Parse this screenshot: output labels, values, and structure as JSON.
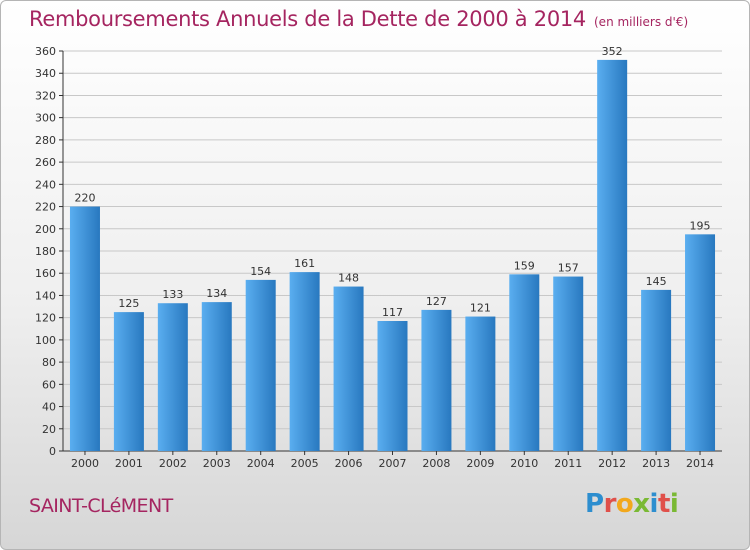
{
  "header": {
    "title": "Remboursements Annuels de la Dette de 2000 à 2014",
    "unit": "(en milliers d'€)"
  },
  "footer": {
    "town": "SAINT-CLéMENT",
    "logo_letters": [
      "P",
      "r",
      "o",
      "x",
      "i",
      "t",
      "i"
    ],
    "logo_colors": [
      "#2d8ecf",
      "#e0504a",
      "#f2a81d",
      "#7ab934",
      "#2d8ecf",
      "#e0504a",
      "#7ab934"
    ]
  },
  "colors": {
    "bar_light": "#5aaef0",
    "bar_dark": "#2878bf",
    "title": "#a52560",
    "axis": "#333333",
    "grid": "#c8c8c8"
  },
  "chart_data": {
    "type": "bar",
    "categories": [
      "2000",
      "2001",
      "2002",
      "2003",
      "2004",
      "2005",
      "2006",
      "2007",
      "2008",
      "2009",
      "2010",
      "2011",
      "2012",
      "2013",
      "2014"
    ],
    "values": [
      220,
      125,
      133,
      134,
      154,
      161,
      148,
      117,
      127,
      121,
      159,
      157,
      352,
      145,
      195
    ],
    "data_labels": [
      "220",
      "125",
      "133",
      "134",
      "154",
      "161",
      "148",
      "117",
      "127",
      "121",
      "159",
      "157",
      "352",
      "145",
      "195"
    ],
    "title": "Remboursements Annuels de la Dette de 2000 à 2014",
    "xlabel": "",
    "ylabel": "",
    "ylim": [
      0,
      360
    ],
    "yticks": [
      0,
      20,
      40,
      60,
      80,
      100,
      120,
      140,
      160,
      180,
      200,
      220,
      240,
      260,
      280,
      300,
      320,
      340,
      360
    ],
    "grid": true,
    "legend": "none"
  }
}
